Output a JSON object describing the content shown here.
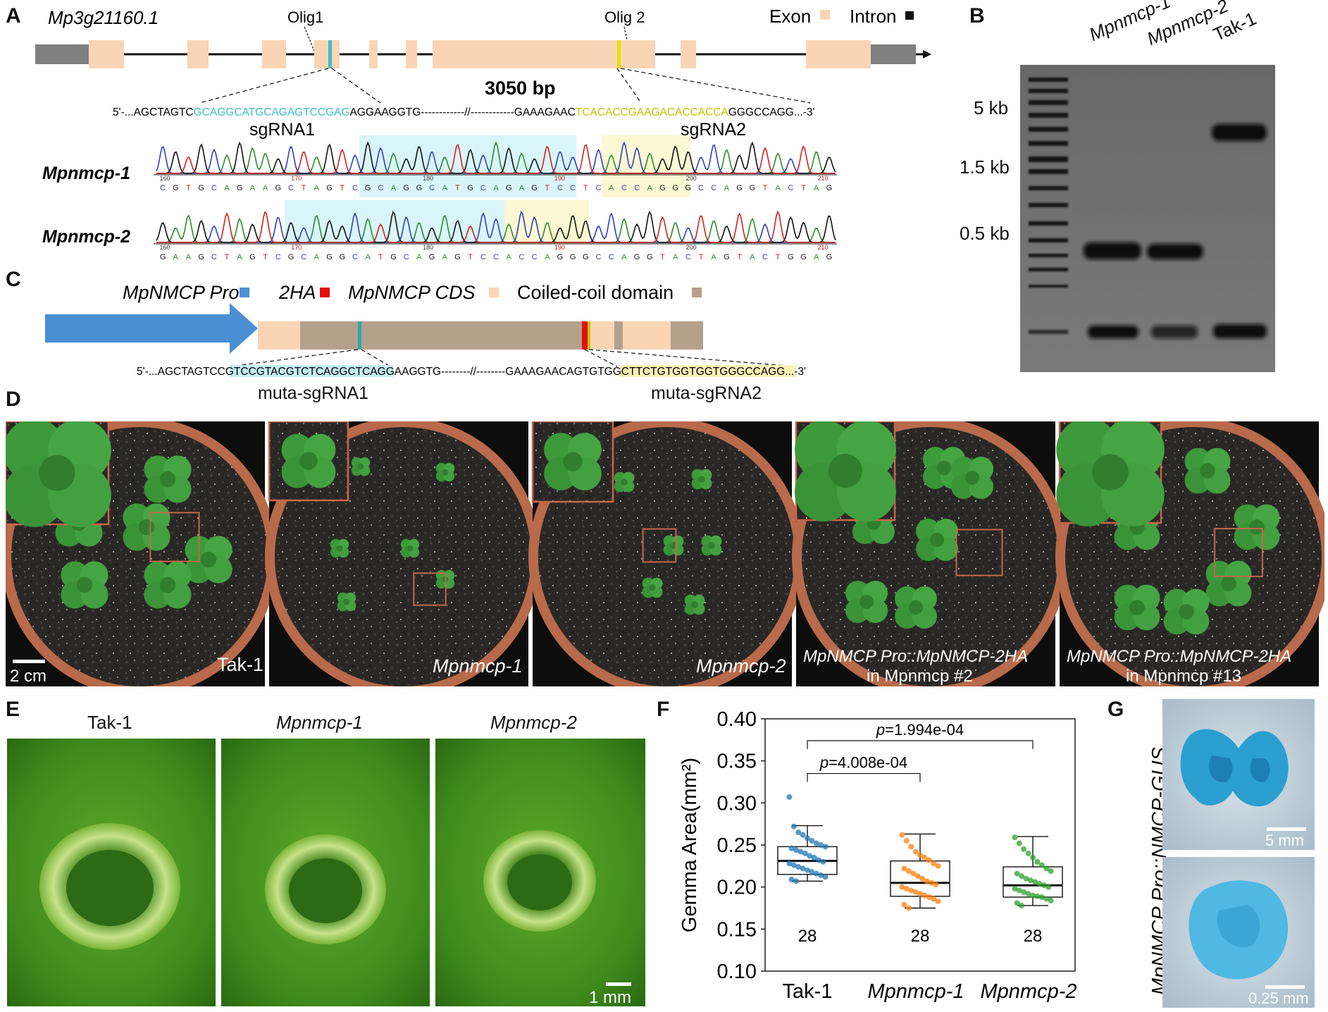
{
  "panels": {
    "A": "A",
    "B": "B",
    "C": "C",
    "D": "D",
    "E": "E",
    "F": "F",
    "G": "G"
  },
  "panel_a": {
    "gene_name": "Mp3g21160.1",
    "olig1": "Olig1",
    "olig2": "Olig 2",
    "exon_label": "Exon",
    "intron_label": "Intron",
    "length_label": "3050 bp",
    "seq_prefix": "5'-...AGCTAGTC",
    "seq_sg1": "GCAGGCATGCAGAGTCCGAG",
    "seq_mid": "AGGAAGGTG------------//------------GAAAGAAC",
    "seq_sg2": "TCACACCGAAGACACCACCA",
    "seq_suffix": "GGGCCAGG...-3'",
    "sgrna1": "sgRNA1",
    "sgrna2": "sgRNA2",
    "mutant1_label": "Mpnmcp-1",
    "mutant2_label": "Mpnmcp-2",
    "trace1_bases": "CGTGCAGAAGCTAGTCGCAGGCATGCAGAGTCCTCACCAGGGCCAGGTACTAG",
    "trace1_positions": [
      "160",
      "170",
      "180",
      "190",
      "200",
      "210"
    ],
    "trace2_bases": "GAAGCTAGTCGCAGGCATGCAGAGTCCACCAGGGCCAGGTACTAGTACTGGAG",
    "trace2_positions": [
      "160",
      "170",
      "180",
      "190",
      "200",
      "210"
    ],
    "colors": {
      "exon": "#f9d5b5",
      "intron": "#111111",
      "utr": "#808080",
      "sg1": "#3bbfcc",
      "sg2": "#e6e000"
    }
  },
  "panel_b": {
    "lanes": [
      "Mpnmcp-1",
      "Mpnmcp-2",
      "Tak-1"
    ],
    "markers": [
      "5 kb",
      "1.5 kb",
      "0.5 kb"
    ]
  },
  "panel_c": {
    "legend_pro": "MpNMCP Pro",
    "legend_2ha": "2HA",
    "legend_cds": "MpNMCP CDS",
    "legend_cc": "Coiled-coil domain",
    "seq_prefix": "5'-...AGCTAGTC",
    "seq_m1": "CGTCCGTACGTCTCAGGCTC",
    "seq_mid": "AGGAAGGTG--------//--------GAAAGAAC",
    "seq_m2": "AGTGTGGCTTCTGTGGTGGT",
    "seq_suffix": "GGGCCAGG...-3'",
    "muta1": "muta-sgRNA1",
    "muta2": "muta-sgRNA2",
    "colors": {
      "pro": "#4a8fd4",
      "ha": "#e01010",
      "cds": "#f9d5b5",
      "cc": "#b5a08c"
    }
  },
  "panel_d": {
    "scale_bar": "2 cm",
    "pots": [
      {
        "line1": "Tak-1",
        "line2": ""
      },
      {
        "line1": "Mpnmcp-1",
        "line2": ""
      },
      {
        "line1": "Mpnmcp-2",
        "line2": ""
      },
      {
        "line1": "MpNMCP Pro::MpNMCP-2HA",
        "line2": "in Mpnmcp  #2"
      },
      {
        "line1": "MpNMCP Pro::MpNMCP-2HA",
        "line2": "in Mpnmcp  #13"
      }
    ]
  },
  "panel_e": {
    "titles": [
      "Tak-1",
      "Mpnmcp-1",
      "Mpnmcp-2"
    ],
    "scale_bar": "1 mm"
  },
  "panel_g": {
    "vertical_label": "MpNMCP Pro::NMCP-GUS",
    "scale_top": "5 mm",
    "scale_bottom": "0.25 mm"
  },
  "chart_data": {
    "type": "box",
    "title": "",
    "ylabel": "Gemma Area(mm²)",
    "xlabel": "",
    "ylim": [
      0.1,
      0.4
    ],
    "yticks": [
      "0.10",
      "0.15",
      "0.20",
      "0.25",
      "0.30",
      "0.35",
      "0.40"
    ],
    "categories": [
      "Tak-1",
      "Mpnmcp-1",
      "Mpnmcp-2"
    ],
    "n_labels": [
      "28",
      "28",
      "28"
    ],
    "boxes": [
      {
        "q1": 0.215,
        "median": 0.231,
        "q3": 0.248,
        "whisker_low": 0.207,
        "whisker_high": 0.273
      },
      {
        "q1": 0.189,
        "median": 0.205,
        "q3": 0.231,
        "whisker_low": 0.175,
        "whisker_high": 0.263
      },
      {
        "q1": 0.188,
        "median": 0.202,
        "q3": 0.224,
        "whisker_low": 0.178,
        "whisker_high": 0.26
      }
    ],
    "points": [
      [
        0.307,
        0.272,
        0.265,
        0.262,
        0.258,
        0.255,
        0.252,
        0.25,
        0.248,
        0.246,
        0.244,
        0.242,
        0.24,
        0.237,
        0.235,
        0.232,
        0.23,
        0.228,
        0.226,
        0.224,
        0.222,
        0.22,
        0.218,
        0.216,
        0.214,
        0.212,
        0.209,
        0.207
      ],
      [
        0.262,
        0.255,
        0.248,
        0.242,
        0.238,
        0.235,
        0.232,
        0.228,
        0.225,
        0.222,
        0.219,
        0.216,
        0.213,
        0.21,
        0.207,
        0.205,
        0.203,
        0.2,
        0.198,
        0.196,
        0.194,
        0.192,
        0.19,
        0.188,
        0.186,
        0.183,
        0.179,
        0.175
      ],
      [
        0.259,
        0.252,
        0.245,
        0.24,
        0.235,
        0.23,
        0.226,
        0.222,
        0.219,
        0.216,
        0.213,
        0.21,
        0.208,
        0.206,
        0.204,
        0.202,
        0.2,
        0.198,
        0.196,
        0.194,
        0.192,
        0.19,
        0.189,
        0.188,
        0.186,
        0.184,
        0.181,
        0.178
      ]
    ],
    "point_colors": [
      "#1f77b4",
      "#ff7f0e",
      "#2ca02c"
    ],
    "annotations": [
      {
        "text": "p=4.008e-04",
        "from": 0,
        "to": 1
      },
      {
        "text": "p=1.994e-04",
        "from": 0,
        "to": 2
      }
    ]
  }
}
